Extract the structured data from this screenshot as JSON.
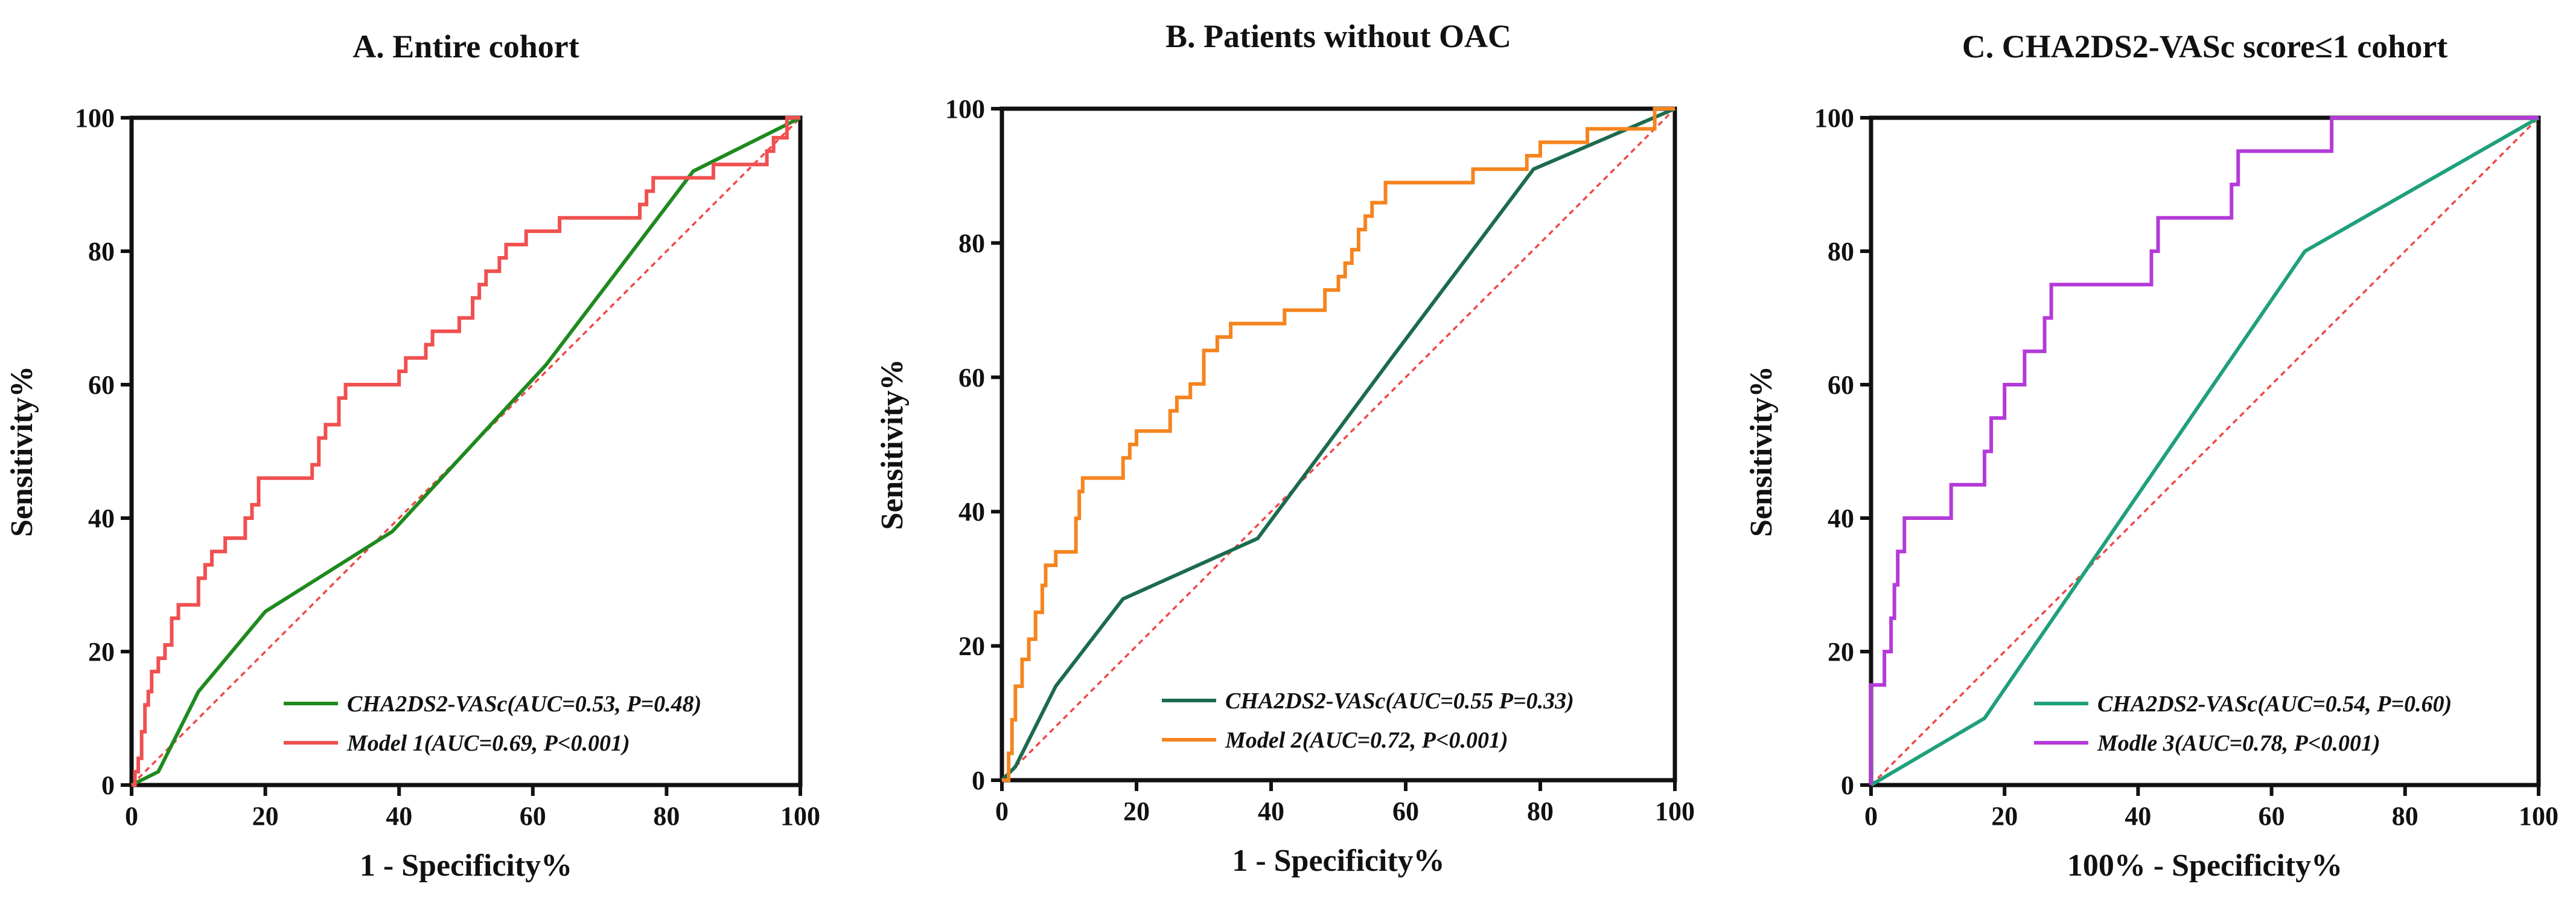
{
  "chart_data": [
    {
      "type": "line",
      "title": "A. Entire cohort",
      "xlabel": "1 - Specificity%",
      "ylabel": "Sensitivity%",
      "xlim": [
        0,
        100
      ],
      "ylim": [
        0,
        100
      ],
      "xticks": [
        "0",
        "20",
        "40",
        "60",
        "80",
        "100"
      ],
      "yticks": [
        "0",
        "20",
        "40",
        "60",
        "80",
        "100"
      ],
      "grid": false,
      "legend_position": "bottom-right",
      "reference_line": {
        "color": "#f04848",
        "style": "dotted",
        "points": [
          [
            0,
            0
          ],
          [
            100,
            100
          ]
        ]
      },
      "series": [
        {
          "name": "CHA2DS2-VASc(AUC=0.53, P=0.48)",
          "color": "#1e8a1e",
          "step": false,
          "points": [
            [
              0,
              0
            ],
            [
              4,
              2
            ],
            [
              10,
              14
            ],
            [
              20,
              26
            ],
            [
              39,
              38
            ],
            [
              62,
              63
            ],
            [
              84,
              92
            ],
            [
              100,
              100
            ]
          ]
        },
        {
          "name": "Model 1(AUC=0.69, P<0.001)",
          "color": "#f05050",
          "step": true,
          "points": [
            [
              0,
              0
            ],
            [
              0.5,
              2
            ],
            [
              1,
              4
            ],
            [
              1.5,
              8
            ],
            [
              2,
              12
            ],
            [
              2.5,
              14
            ],
            [
              3,
              17
            ],
            [
              4,
              19
            ],
            [
              5,
              21
            ],
            [
              6,
              25
            ],
            [
              7,
              27
            ],
            [
              10,
              31
            ],
            [
              11,
              33
            ],
            [
              12,
              35
            ],
            [
              14,
              37
            ],
            [
              17,
              40
            ],
            [
              18,
              42
            ],
            [
              19,
              46
            ],
            [
              27,
              48
            ],
            [
              28,
              52
            ],
            [
              29,
              54
            ],
            [
              31,
              58
            ],
            [
              32,
              60
            ],
            [
              40,
              62
            ],
            [
              41,
              64
            ],
            [
              44,
              66
            ],
            [
              45,
              68
            ],
            [
              49,
              70
            ],
            [
              51,
              73
            ],
            [
              52,
              75
            ],
            [
              53,
              77
            ],
            [
              55,
              79
            ],
            [
              56,
              81
            ],
            [
              59,
              83
            ],
            [
              64,
              85
            ],
            [
              76,
              87
            ],
            [
              77,
              89
            ],
            [
              78,
              91
            ],
            [
              87,
              93
            ],
            [
              95,
              95
            ],
            [
              96,
              97
            ],
            [
              98,
              100
            ],
            [
              100,
              100
            ]
          ]
        }
      ]
    },
    {
      "type": "line",
      "title": "B. Patients without OAC",
      "xlabel": "1 - Specificity%",
      "ylabel": "Sensitivity%",
      "xlim": [
        0,
        100
      ],
      "ylim": [
        0,
        100
      ],
      "xticks": [
        "0",
        "20",
        "40",
        "60",
        "80",
        "100"
      ],
      "yticks": [
        "0",
        "20",
        "40",
        "60",
        "80",
        "100"
      ],
      "grid": false,
      "legend_position": "bottom-right",
      "reference_line": {
        "color": "#f04848",
        "style": "dotted",
        "points": [
          [
            0,
            0
          ],
          [
            100,
            100
          ]
        ]
      },
      "series": [
        {
          "name": "CHA2DS2-VASc(AUC=0.55 P=0.33)",
          "color": "#1c6b4e",
          "step": false,
          "points": [
            [
              0,
              0
            ],
            [
              2,
              2
            ],
            [
              8,
              14
            ],
            [
              18,
              27
            ],
            [
              38,
              36
            ],
            [
              58,
              63
            ],
            [
              79,
              91
            ],
            [
              100,
              100
            ]
          ]
        },
        {
          "name": "Model 2(AUC=0.72, P<0.001)",
          "color": "#f5841f",
          "step": true,
          "points": [
            [
              0,
              0
            ],
            [
              1,
              4
            ],
            [
              1.5,
              9
            ],
            [
              2,
              14
            ],
            [
              3,
              18
            ],
            [
              4,
              21
            ],
            [
              5,
              25
            ],
            [
              6,
              29
            ],
            [
              6.5,
              32
            ],
            [
              8,
              34
            ],
            [
              11,
              39
            ],
            [
              11.5,
              43
            ],
            [
              12,
              45
            ],
            [
              18,
              48
            ],
            [
              19,
              50
            ],
            [
              20,
              52
            ],
            [
              25,
              55
            ],
            [
              26,
              57
            ],
            [
              28,
              59
            ],
            [
              30,
              64
            ],
            [
              32,
              66
            ],
            [
              34,
              68
            ],
            [
              42,
              70
            ],
            [
              48,
              73
            ],
            [
              50,
              75
            ],
            [
              51,
              77
            ],
            [
              52,
              79
            ],
            [
              53,
              82
            ],
            [
              54,
              84
            ],
            [
              55,
              86
            ],
            [
              57,
              89
            ],
            [
              70,
              91
            ],
            [
              78,
              93
            ],
            [
              80,
              95
            ],
            [
              87,
              97
            ],
            [
              97,
              100
            ],
            [
              100,
              100
            ]
          ]
        }
      ]
    },
    {
      "type": "line",
      "title": "C. CHA2DS2-VASc score≤1 cohort",
      "xlabel": "100% - Specificity%",
      "ylabel": "Sensitivity%",
      "xlim": [
        0,
        100
      ],
      "ylim": [
        0,
        100
      ],
      "xticks": [
        "0",
        "20",
        "40",
        "60",
        "80",
        "100"
      ],
      "yticks": [
        "0",
        "20",
        "40",
        "60",
        "80",
        "100"
      ],
      "grid": false,
      "legend_position": "bottom-right",
      "reference_line": {
        "color": "#f04848",
        "style": "dotted",
        "points": [
          [
            0,
            0
          ],
          [
            100,
            100
          ]
        ]
      },
      "series": [
        {
          "name": "CHA2DS2-VASc(AUC=0.54, P=0.60)",
          "color": "#1fa07c",
          "step": false,
          "points": [
            [
              0,
              0
            ],
            [
              17,
              10
            ],
            [
              65,
              80
            ],
            [
              100,
              100
            ]
          ]
        },
        {
          "name": "Modle 3(AUC=0.78, P<0.001)",
          "color": "#b43ad8",
          "step": true,
          "points": [
            [
              0,
              0
            ],
            [
              0,
              15
            ],
            [
              2,
              20
            ],
            [
              3,
              25
            ],
            [
              3.5,
              30
            ],
            [
              4,
              35
            ],
            [
              5,
              40
            ],
            [
              12,
              45
            ],
            [
              17,
              50
            ],
            [
              18,
              55
            ],
            [
              20,
              60
            ],
            [
              23,
              65
            ],
            [
              26,
              70
            ],
            [
              27,
              75
            ],
            [
              42,
              80
            ],
            [
              43,
              85
            ],
            [
              54,
              90
            ],
            [
              55,
              95
            ],
            [
              69,
              100
            ],
            [
              100,
              100
            ]
          ]
        }
      ]
    }
  ]
}
